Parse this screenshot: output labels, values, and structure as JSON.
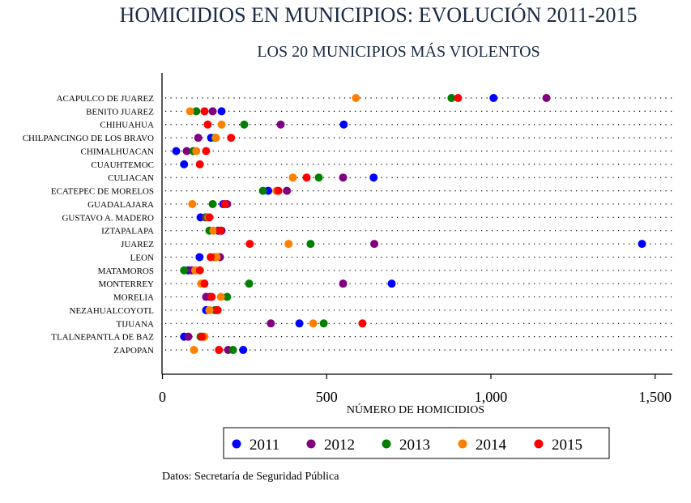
{
  "chart_data": {
    "type": "scatter",
    "title": "HOMICIDIOS EN MUNICIPIOS: EVOLUCIÓN 2011-2015",
    "subtitle": "LOS 20 MUNICIPIOS MÁS VIOLENTOS",
    "xlabel": "NÚMERO DE HOMICIDIOS",
    "xlim": [
      0,
      1550
    ],
    "xticks": [
      0,
      500,
      1000,
      1500
    ],
    "xtick_labels": [
      "0",
      "500",
      "1,000",
      "1,500"
    ],
    "grid": "dotted horizontal lines per category",
    "legend_position": "bottom",
    "note": "Datos: Secretaría de Seguridad Pública",
    "categories": [
      "ACAPULCO DE JUAREZ",
      "BENITO JUAREZ",
      "CHIHUAHUA",
      "CHILPANCINGO DE LOS BRAVO",
      "CHIMALHUACAN",
      "CUAUHTEMOC",
      "CULIACAN",
      "ECATEPEC DE MORELOS",
      "GUADALAJARA",
      "GUSTAVO A. MADERO",
      "IZTAPALAPA",
      "JUAREZ",
      "LEON",
      "MATAMOROS",
      "MONTERREY",
      "MORELIA",
      "NEZAHUALCOYOTL",
      "TIJUANA",
      "TLALNEPANTLA DE BAZ",
      "ZAPOPAN"
    ],
    "series": [
      {
        "name": "2011",
        "color": "#0000ff",
        "values": [
          1008,
          180,
          552,
          148,
          42,
          66,
          643,
          322,
          185,
          116,
          170,
          1460,
          113,
          79,
          698,
          146,
          133,
          417,
          66,
          246
        ]
      },
      {
        "name": "2012",
        "color": "#800080",
        "values": [
          1169,
          153,
          360,
          109,
          74,
          null,
          550,
          379,
          197,
          131,
          180,
          645,
          175,
          89,
          550,
          133,
          165,
          330,
          79,
          200
        ]
      },
      {
        "name": "2013",
        "color": "#008000",
        "values": [
          880,
          103,
          249,
          160,
          94,
          null,
          476,
          306,
          153,
          135,
          143,
          451,
          160,
          66,
          264,
          197,
          160,
          491,
          116,
          215
        ]
      },
      {
        "name": "2014",
        "color": "#ff8000",
        "values": [
          589,
          84,
          180,
          163,
          103,
          null,
          397,
          347,
          91,
          140,
          155,
          384,
          165,
          100,
          118,
          178,
          143,
          459,
          128,
          96
        ]
      },
      {
        "name": "2015",
        "color": "#ff0000",
        "values": [
          900,
          128,
          138,
          209,
          133,
          114,
          439,
          353,
          190,
          143,
          176,
          266,
          147,
          114,
          128,
          150,
          168,
          609,
          120,
          172
        ]
      }
    ]
  }
}
